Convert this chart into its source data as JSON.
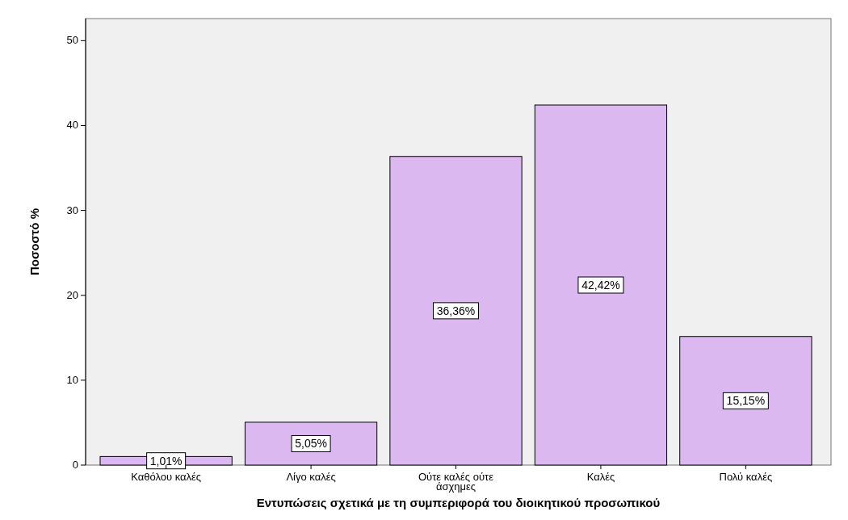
{
  "chart_data": {
    "type": "bar",
    "xlabel": "Εντυπώσεις σχετικά με τη συμπεριφορά του διοικητικού προσωπικού",
    "ylabel": "Ποσοστό %",
    "categories": [
      "Καθόλου καλές",
      "Λίγο καλές",
      "Ούτε καλές ούτε άσχημες",
      "Καλές",
      "Πολύ καλές"
    ],
    "values": [
      1.01,
      5.05,
      36.36,
      42.42,
      15.15
    ],
    "value_labels": [
      "1,01%",
      "5,05%",
      "36,36%",
      "42,42%",
      "15,15%"
    ],
    "color": "#dcb8f0",
    "ylim": [
      0,
      52.6
    ],
    "yticks": [
      0,
      10,
      20,
      30,
      40,
      50
    ],
    "grid": false
  }
}
